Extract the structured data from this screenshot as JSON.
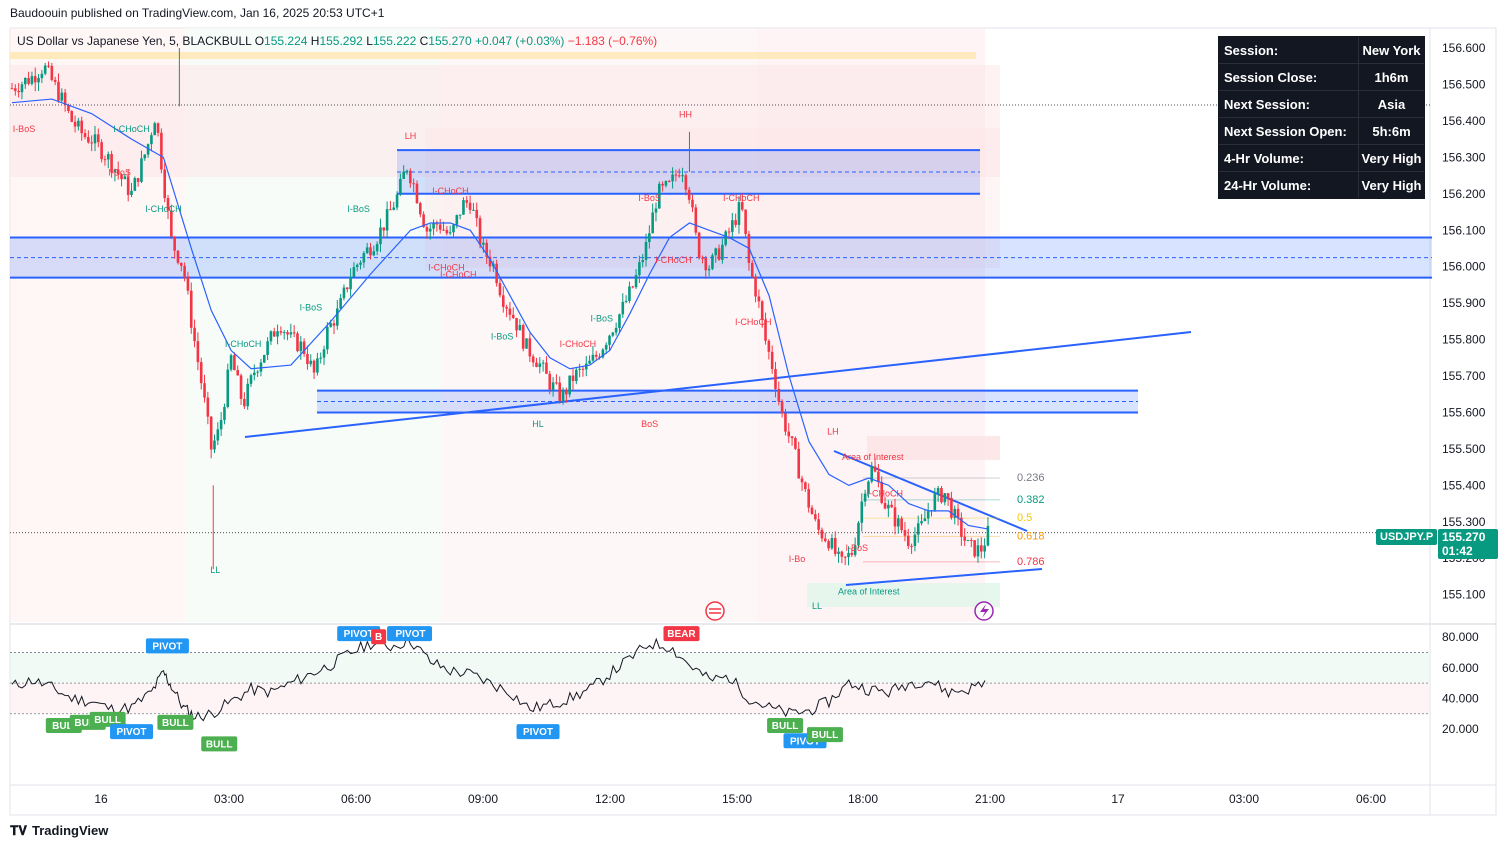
{
  "header": {
    "published": "Baudoouin published on TradingView.com, Jan 16, 2025 20:53 UTC+1"
  },
  "legend": {
    "symbol": "US Dollar vs Japanese Yen, 5, BLACKBULL",
    "o_label": "O",
    "o": "155.224",
    "h_label": "H",
    "h": "155.292",
    "l_label": "L",
    "l": "155.222",
    "c_label": "C",
    "c": "155.270",
    "change": "+0.047 (+0.03%)",
    "day_change": "−1.183 (−0.76%)"
  },
  "session_table": [
    {
      "key": "Session:",
      "value": "New York"
    },
    {
      "key": "Session Close:",
      "value": "1h6m"
    },
    {
      "key": "Next Session:",
      "value": "Asia"
    },
    {
      "key": "Next Session Open:",
      "value": "5h:6m"
    },
    {
      "key": "4-Hr Volume:",
      "value": "Very High"
    },
    {
      "key": "24-Hr Volume:",
      "value": "Very High"
    }
  ],
  "price_tag": {
    "ticker": "USDJPY.P",
    "price": "155.270",
    "countdown": "01:42"
  },
  "footer": {
    "brand": "TradingView"
  },
  "colors": {
    "up": "#089981",
    "down": "#f23645",
    "zone": "#2962ff",
    "ma": "#2962ff",
    "rsi": "#131722",
    "pivot": "#2196f3",
    "bull": "#4caf50",
    "bear": "#f23645"
  },
  "chart_data": {
    "type": "candlestick",
    "price_axis": {
      "ticks": [
        "156.600",
        "156.500",
        "156.400",
        "156.300",
        "156.200",
        "156.100",
        "156.000",
        "155.900",
        "155.800",
        "155.700",
        "155.600",
        "155.500",
        "155.400",
        "155.300",
        "155.200",
        "155.100"
      ],
      "range": [
        155.03,
        156.67
      ]
    },
    "time_axis": {
      "ticks": [
        "16",
        "03:00",
        "06:00",
        "09:00",
        "12:00",
        "15:00",
        "18:00",
        "21:00",
        "17",
        "03:00",
        "06:00"
      ]
    },
    "close_path": [
      [
        0.0,
        156.49
      ],
      [
        0.5,
        156.52
      ],
      [
        0.8,
        156.55
      ],
      [
        1.2,
        156.47
      ],
      [
        1.5,
        156.4
      ],
      [
        1.8,
        156.36
      ],
      [
        2.0,
        156.35
      ],
      [
        2.4,
        156.3
      ],
      [
        2.7,
        156.25
      ],
      [
        3.0,
        156.2
      ],
      [
        3.4,
        156.33
      ],
      [
        3.6,
        156.42
      ],
      [
        3.8,
        156.24
      ],
      [
        4.0,
        156.07
      ],
      [
        4.3,
        156.0
      ],
      [
        4.5,
        155.85
      ],
      [
        4.8,
        155.65
      ],
      [
        5.0,
        155.5
      ],
      [
        5.2,
        155.55
      ],
      [
        5.5,
        155.75
      ],
      [
        5.8,
        155.62
      ],
      [
        6.1,
        155.72
      ],
      [
        6.4,
        155.78
      ],
      [
        6.7,
        155.85
      ],
      [
        7.0,
        155.8
      ],
      [
        7.3,
        155.78
      ],
      [
        7.6,
        155.7
      ],
      [
        7.9,
        155.82
      ],
      [
        8.2,
        155.88
      ],
      [
        8.5,
        155.98
      ],
      [
        8.8,
        156.03
      ],
      [
        9.1,
        156.07
      ],
      [
        9.4,
        156.13
      ],
      [
        9.7,
        156.2
      ],
      [
        9.9,
        156.28
      ],
      [
        10.1,
        156.22
      ],
      [
        10.4,
        156.1
      ],
      [
        10.7,
        156.12
      ],
      [
        11.0,
        156.08
      ],
      [
        11.3,
        156.17
      ],
      [
        11.5,
        156.18
      ],
      [
        11.8,
        156.05
      ],
      [
        12.1,
        156.0
      ],
      [
        12.3,
        155.92
      ],
      [
        12.6,
        155.86
      ],
      [
        12.9,
        155.78
      ],
      [
        13.2,
        155.74
      ],
      [
        13.5,
        155.68
      ],
      [
        13.8,
        155.64
      ],
      [
        14.1,
        155.7
      ],
      [
        14.4,
        155.72
      ],
      [
        14.7,
        155.76
      ],
      [
        15.0,
        155.82
      ],
      [
        15.3,
        155.88
      ],
      [
        15.6,
        155.95
      ],
      [
        15.9,
        156.05
      ],
      [
        16.2,
        156.2
      ],
      [
        16.5,
        156.22
      ],
      [
        16.8,
        156.28
      ],
      [
        17.0,
        156.2
      ],
      [
        17.2,
        156.05
      ],
      [
        17.5,
        156.0
      ],
      [
        17.8,
        156.05
      ],
      [
        18.1,
        156.12
      ],
      [
        18.3,
        156.17
      ],
      [
        18.5,
        156.0
      ],
      [
        18.7,
        155.92
      ],
      [
        18.9,
        155.8
      ],
      [
        19.1,
        155.72
      ],
      [
        19.3,
        155.6
      ],
      [
        19.6,
        155.5
      ],
      [
        19.9,
        155.38
      ],
      [
        20.2,
        155.28
      ],
      [
        20.5,
        155.25
      ],
      [
        20.8,
        155.18
      ],
      [
        21.1,
        155.22
      ],
      [
        21.4,
        155.4
      ],
      [
        21.6,
        155.45
      ],
      [
        21.9,
        155.35
      ],
      [
        22.2,
        155.3
      ],
      [
        22.5,
        155.25
      ],
      [
        22.8,
        155.28
      ],
      [
        23.1,
        155.36
      ],
      [
        23.4,
        155.38
      ],
      [
        23.7,
        155.3
      ],
      [
        24.0,
        155.23
      ],
      [
        24.3,
        155.22
      ],
      [
        24.5,
        155.27
      ]
    ],
    "moving_average": [
      [
        0.0,
        156.45
      ],
      [
        1.0,
        156.46
      ],
      [
        2.0,
        156.42
      ],
      [
        3.0,
        156.35
      ],
      [
        3.8,
        156.3
      ],
      [
        4.5,
        156.05
      ],
      [
        5.0,
        155.88
      ],
      [
        5.5,
        155.77
      ],
      [
        6.0,
        155.72
      ],
      [
        7.0,
        155.73
      ],
      [
        8.0,
        155.85
      ],
      [
        9.0,
        155.98
      ],
      [
        10.0,
        156.1
      ],
      [
        10.5,
        156.12
      ],
      [
        11.0,
        156.12
      ],
      [
        11.5,
        156.1
      ],
      [
        12.0,
        156.02
      ],
      [
        12.5,
        155.92
      ],
      [
        13.0,
        155.82
      ],
      [
        13.5,
        155.75
      ],
      [
        14.0,
        155.72
      ],
      [
        14.5,
        155.73
      ],
      [
        15.0,
        155.77
      ],
      [
        15.5,
        155.87
      ],
      [
        16.0,
        155.98
      ],
      [
        16.5,
        156.08
      ],
      [
        17.0,
        156.12
      ],
      [
        17.5,
        156.1
      ],
      [
        18.0,
        156.08
      ],
      [
        18.5,
        156.05
      ],
      [
        19.0,
        155.92
      ],
      [
        19.5,
        155.7
      ],
      [
        20.0,
        155.52
      ],
      [
        20.5,
        155.43
      ],
      [
        21.0,
        155.4
      ],
      [
        21.5,
        155.42
      ],
      [
        22.0,
        155.4
      ],
      [
        22.5,
        155.35
      ],
      [
        23.0,
        155.33
      ],
      [
        23.5,
        155.33
      ],
      [
        24.0,
        155.29
      ],
      [
        24.5,
        155.28
      ]
    ],
    "zones": [
      {
        "top": 156.32,
        "bottom": 156.2
      },
      {
        "top": 156.08,
        "bottom": 155.97
      },
      {
        "top": 155.66,
        "bottom": 155.6
      }
    ],
    "fib_levels": [
      {
        "label": "0.236",
        "price": 155.42
      },
      {
        "label": "0.382",
        "price": 155.36
      },
      {
        "label": "0.5",
        "price": 155.31
      },
      {
        "label": "0.618",
        "price": 155.26
      },
      {
        "label": "0.786",
        "price": 155.19
      }
    ],
    "annotations": [
      {
        "text": "I-BoS",
        "t": 0.3,
        "p": 156.37
      },
      {
        "text": "I-CHoCH",
        "t": 3.0,
        "p": 156.37
      },
      {
        "text": "I-BoS",
        "t": 2.7,
        "p": 156.25
      },
      {
        "text": "I-CHoCH",
        "t": 3.8,
        "p": 156.15
      },
      {
        "text": "LL",
        "t": 5.1,
        "p": 155.16
      },
      {
        "text": "I-CHoCH",
        "t": 5.8,
        "p": 155.78
      },
      {
        "text": "I-BoS",
        "t": 7.5,
        "p": 155.88
      },
      {
        "text": "I-BoS",
        "t": 8.7,
        "p": 156.15
      },
      {
        "text": "LH",
        "t": 10.0,
        "p": 156.35
      },
      {
        "text": "I-CHoCH",
        "t": 11.0,
        "p": 156.2
      },
      {
        "text": "I-CHoCH",
        "t": 10.9,
        "p": 155.99
      },
      {
        "text": "I-CHoCH",
        "t": 11.2,
        "p": 155.97
      },
      {
        "text": "I-BoS",
        "t": 12.3,
        "p": 155.8
      },
      {
        "text": "HL",
        "t": 13.2,
        "p": 155.56
      },
      {
        "text": "I-CHoCH",
        "t": 14.2,
        "p": 155.78
      },
      {
        "text": "I-BoS",
        "t": 14.8,
        "p": 155.85
      },
      {
        "text": "BoS",
        "t": 16.0,
        "p": 155.56
      },
      {
        "text": "I-BoS",
        "t": 16.0,
        "p": 156.18
      },
      {
        "text": "HH",
        "t": 16.9,
        "p": 156.41
      },
      {
        "text": "I-CHoCH",
        "t": 16.6,
        "p": 156.01
      },
      {
        "text": "I-CHoCH",
        "t": 18.3,
        "p": 156.18
      },
      {
        "text": "I-CHoCH",
        "t": 18.6,
        "p": 155.84
      },
      {
        "text": "LH",
        "t": 20.6,
        "p": 155.54
      },
      {
        "text": "Area of Interest",
        "t": 21.6,
        "p": 155.47
      },
      {
        "text": "I-CHoCH",
        "t": 21.9,
        "p": 155.37
      },
      {
        "text": "I-BoS",
        "t": 21.2,
        "p": 155.22
      },
      {
        "text": "I-Bo",
        "t": 19.7,
        "p": 155.19
      },
      {
        "text": "Area of Interest",
        "t": 21.5,
        "p": 155.1
      },
      {
        "text": "LL",
        "t": 20.2,
        "p": 155.06
      }
    ],
    "rsi": {
      "ticks": [
        "80.000",
        "60.000",
        "40.000",
        "20.000"
      ],
      "levels": [
        70,
        50,
        30
      ],
      "values": [
        [
          0,
          48
        ],
        [
          0.5,
          52
        ],
        [
          1,
          47
        ],
        [
          1.5,
          40
        ],
        [
          2,
          38
        ],
        [
          2.5,
          33
        ],
        [
          3,
          34
        ],
        [
          3.5,
          44
        ],
        [
          3.8,
          57
        ],
        [
          4,
          48
        ],
        [
          4.3,
          34
        ],
        [
          4.6,
          28
        ],
        [
          5,
          30
        ],
        [
          5.5,
          38
        ],
        [
          6,
          46
        ],
        [
          6.5,
          44
        ],
        [
          7,
          50
        ],
        [
          7.5,
          56
        ],
        [
          8,
          62
        ],
        [
          8.5,
          70
        ],
        [
          9,
          76
        ],
        [
          9.5,
          74
        ],
        [
          10,
          78
        ],
        [
          10.5,
          64
        ],
        [
          11,
          58
        ],
        [
          11.5,
          56
        ],
        [
          12,
          50
        ],
        [
          12.5,
          44
        ],
        [
          13,
          33
        ],
        [
          13.5,
          36
        ],
        [
          14,
          40
        ],
        [
          14.5,
          46
        ],
        [
          15,
          56
        ],
        [
          15.5,
          66
        ],
        [
          16,
          76
        ],
        [
          16.5,
          74
        ],
        [
          17,
          62
        ],
        [
          17.5,
          52
        ],
        [
          18,
          54
        ],
        [
          18.5,
          40
        ],
        [
          19,
          34
        ],
        [
          19.5,
          30
        ],
        [
          20,
          32
        ],
        [
          20.5,
          38
        ],
        [
          21,
          50
        ],
        [
          21.5,
          46
        ],
        [
          22,
          44
        ],
        [
          22.5,
          50
        ],
        [
          23,
          52
        ],
        [
          23.5,
          44
        ],
        [
          24,
          46
        ],
        [
          24.5,
          52
        ]
      ],
      "signals": [
        {
          "text": "PIVOT",
          "t": 3.9,
          "v": 74,
          "kind": "pivot"
        },
        {
          "text": "PIVOT",
          "t": 8.7,
          "v": 82,
          "kind": "pivot"
        },
        {
          "text": "B",
          "t": 9.2,
          "v": 80,
          "kind": "bear"
        },
        {
          "text": "P",
          "t": 9.6,
          "v": 82,
          "kind": "pivot"
        },
        {
          "text": "PIVOT",
          "t": 10.0,
          "v": 82,
          "kind": "pivot"
        },
        {
          "text": "BEAR",
          "t": 16.8,
          "v": 82,
          "kind": "bear"
        },
        {
          "text": "BULI",
          "t": 1.3,
          "v": 22,
          "kind": "bull"
        },
        {
          "text": "BULL",
          "t": 1.9,
          "v": 24,
          "kind": "bull"
        },
        {
          "text": "BULL",
          "t": 2.4,
          "v": 26,
          "kind": "bull"
        },
        {
          "text": "PIVOT",
          "t": 3.0,
          "v": 18,
          "kind": "pivot"
        },
        {
          "text": "BULL",
          "t": 4.1,
          "v": 24,
          "kind": "bull"
        },
        {
          "text": "BULL",
          "t": 5.2,
          "v": 10,
          "kind": "bull"
        },
        {
          "text": "PIVOT",
          "t": 13.2,
          "v": 18,
          "kind": "pivot"
        },
        {
          "text": "BULL",
          "t": 19.4,
          "v": 22,
          "kind": "bull"
        },
        {
          "text": "PIVOT",
          "t": 19.9,
          "v": 12,
          "kind": "pivot"
        },
        {
          "text": "BULL",
          "t": 20.4,
          "v": 16,
          "kind": "bull"
        }
      ]
    }
  }
}
